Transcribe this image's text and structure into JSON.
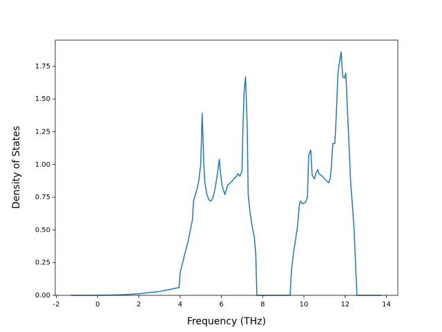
{
  "chart_data": {
    "type": "line",
    "x_label": "Frequency (THz)",
    "y_label": "Density of States",
    "x": [
      -1.3,
      0,
      1,
      2,
      3,
      3.5,
      3.95,
      4.0,
      4.2,
      4.4,
      4.5,
      4.6,
      4.65,
      4.8,
      4.9,
      5.0,
      5.07,
      5.15,
      5.2,
      5.3,
      5.4,
      5.5,
      5.6,
      5.7,
      5.8,
      5.9,
      5.97,
      6.03,
      6.17,
      6.3,
      6.5,
      6.65,
      6.7,
      6.8,
      6.9,
      7.0,
      7.05,
      7.1,
      7.17,
      7.25,
      7.3,
      7.4,
      7.5,
      7.6,
      7.67,
      7.72,
      9.33,
      9.4,
      9.5,
      9.6,
      9.7,
      9.77,
      9.83,
      9.93,
      10.07,
      10.17,
      10.23,
      10.33,
      10.4,
      10.5,
      10.6,
      10.67,
      10.73,
      10.9,
      11.0,
      11.2,
      11.27,
      11.33,
      11.4,
      11.5,
      11.57,
      11.65,
      11.8,
      11.88,
      11.97,
      12.03,
      12.1,
      12.2,
      12.27,
      12.37,
      12.43,
      12.5,
      12.57,
      13.77
    ],
    "series": [
      {
        "color": "#1f77b4",
        "values": [
          0,
          0,
          0.003,
          0.012,
          0.03,
          0.045,
          0.06,
          0.17,
          0.3,
          0.42,
          0.5,
          0.58,
          0.72,
          0.8,
          0.87,
          1.0,
          1.39,
          1.0,
          0.86,
          0.77,
          0.73,
          0.72,
          0.75,
          0.82,
          0.92,
          1.04,
          0.92,
          0.84,
          0.77,
          0.84,
          0.87,
          0.9,
          0.9,
          0.93,
          0.91,
          0.95,
          1.3,
          1.55,
          1.67,
          1.3,
          0.77,
          0.62,
          0.52,
          0.44,
          0.3,
          0,
          0,
          0.2,
          0.33,
          0.43,
          0.54,
          0.68,
          0.72,
          0.7,
          0.71,
          0.75,
          1.07,
          1.11,
          0.92,
          0.89,
          0.94,
          0.96,
          0.93,
          0.91,
          0.89,
          0.86,
          0.89,
          0.98,
          1.16,
          1.16,
          1.38,
          1.7,
          1.86,
          1.67,
          1.66,
          1.7,
          1.45,
          1.1,
          0.85,
          0.65,
          0.5,
          0.25,
          0,
          0
        ]
      }
    ],
    "xlim": [
      -2.05,
      14.55
    ],
    "ylim": [
      0,
      1.95
    ],
    "xticks": [
      -2,
      0,
      2,
      4,
      6,
      8,
      10,
      12,
      14
    ],
    "yticks": [
      {
        "value": 0,
        "label": "0.00"
      },
      {
        "value": 0.25,
        "label": "0.25"
      },
      {
        "value": 0.5,
        "label": "0.50"
      },
      {
        "value": 0.75,
        "label": "0.75"
      },
      {
        "value": 1.0,
        "label": "1.00"
      },
      {
        "value": 1.25,
        "label": "1.25"
      },
      {
        "value": 1.5,
        "label": "1.50"
      },
      {
        "value": 1.75,
        "label": "1.75"
      }
    ],
    "grid": false
  }
}
